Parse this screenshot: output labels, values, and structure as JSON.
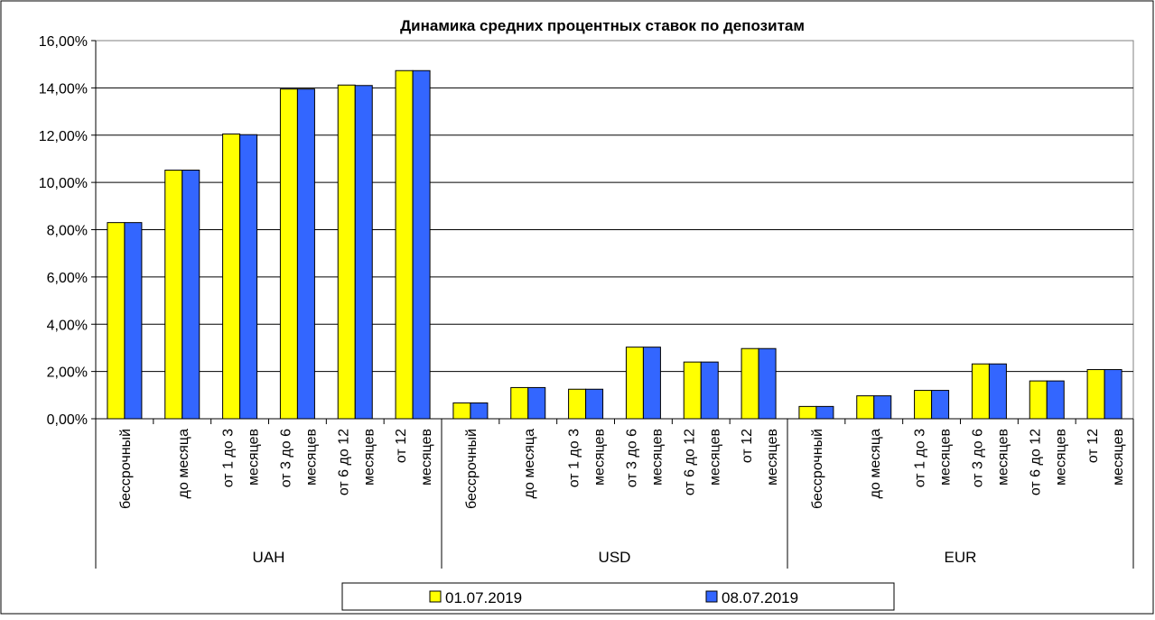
{
  "chart_data": {
    "type": "bar",
    "title": "Динамика средних процентных ставок по депозитам",
    "xlabel": "",
    "ylabel": "",
    "ylim": [
      0,
      0.16
    ],
    "y_ticks": [
      "0,00%",
      "2,00%",
      "4,00%",
      "6,00%",
      "8,00%",
      "10,00%",
      "12,00%",
      "14,00%",
      "16,00%"
    ],
    "grid": true,
    "legend_position": "bottom",
    "groups": [
      {
        "label": "UAH",
        "categories": [
          [
            "бессрочный"
          ],
          [
            "до месяца"
          ],
          [
            "от 1 до 3",
            "месяцев"
          ],
          [
            "от 3 до 6",
            "месяцев"
          ],
          [
            "от 6 до 12",
            "месяцев"
          ],
          [
            "от 12",
            "месяцев"
          ]
        ]
      },
      {
        "label": "USD",
        "categories": [
          [
            "бессрочный"
          ],
          [
            "до месяца"
          ],
          [
            "от 1 до 3",
            "месяцев"
          ],
          [
            "от 3 до 6",
            "месяцев"
          ],
          [
            "от 6 до 12",
            "месяцев"
          ],
          [
            "от 12",
            "месяцев"
          ]
        ]
      },
      {
        "label": "EUR",
        "categories": [
          [
            "бессрочный"
          ],
          [
            "до месяца"
          ],
          [
            "от 1 до 3",
            "месяцев"
          ],
          [
            "от 3 до 6",
            "месяцев"
          ],
          [
            "от 6 до 12",
            "месяцев"
          ],
          [
            "от 12",
            "месяцев"
          ]
        ]
      }
    ],
    "series": [
      {
        "name": "01.07.2019",
        "color": "#ffff00",
        "values": [
          0.083,
          0.1052,
          0.1205,
          0.1395,
          0.1412,
          0.1473,
          0.0067,
          0.0132,
          0.0125,
          0.0303,
          0.024,
          0.0297,
          0.0052,
          0.0097,
          0.012,
          0.0232,
          0.016,
          0.0208
        ]
      },
      {
        "name": "08.07.2019",
        "color": "#3366ff",
        "values": [
          0.083,
          0.1052,
          0.1202,
          0.1395,
          0.141,
          0.1473,
          0.0067,
          0.0132,
          0.0125,
          0.0303,
          0.024,
          0.0297,
          0.0052,
          0.0097,
          0.012,
          0.0232,
          0.016,
          0.0208
        ]
      }
    ]
  }
}
